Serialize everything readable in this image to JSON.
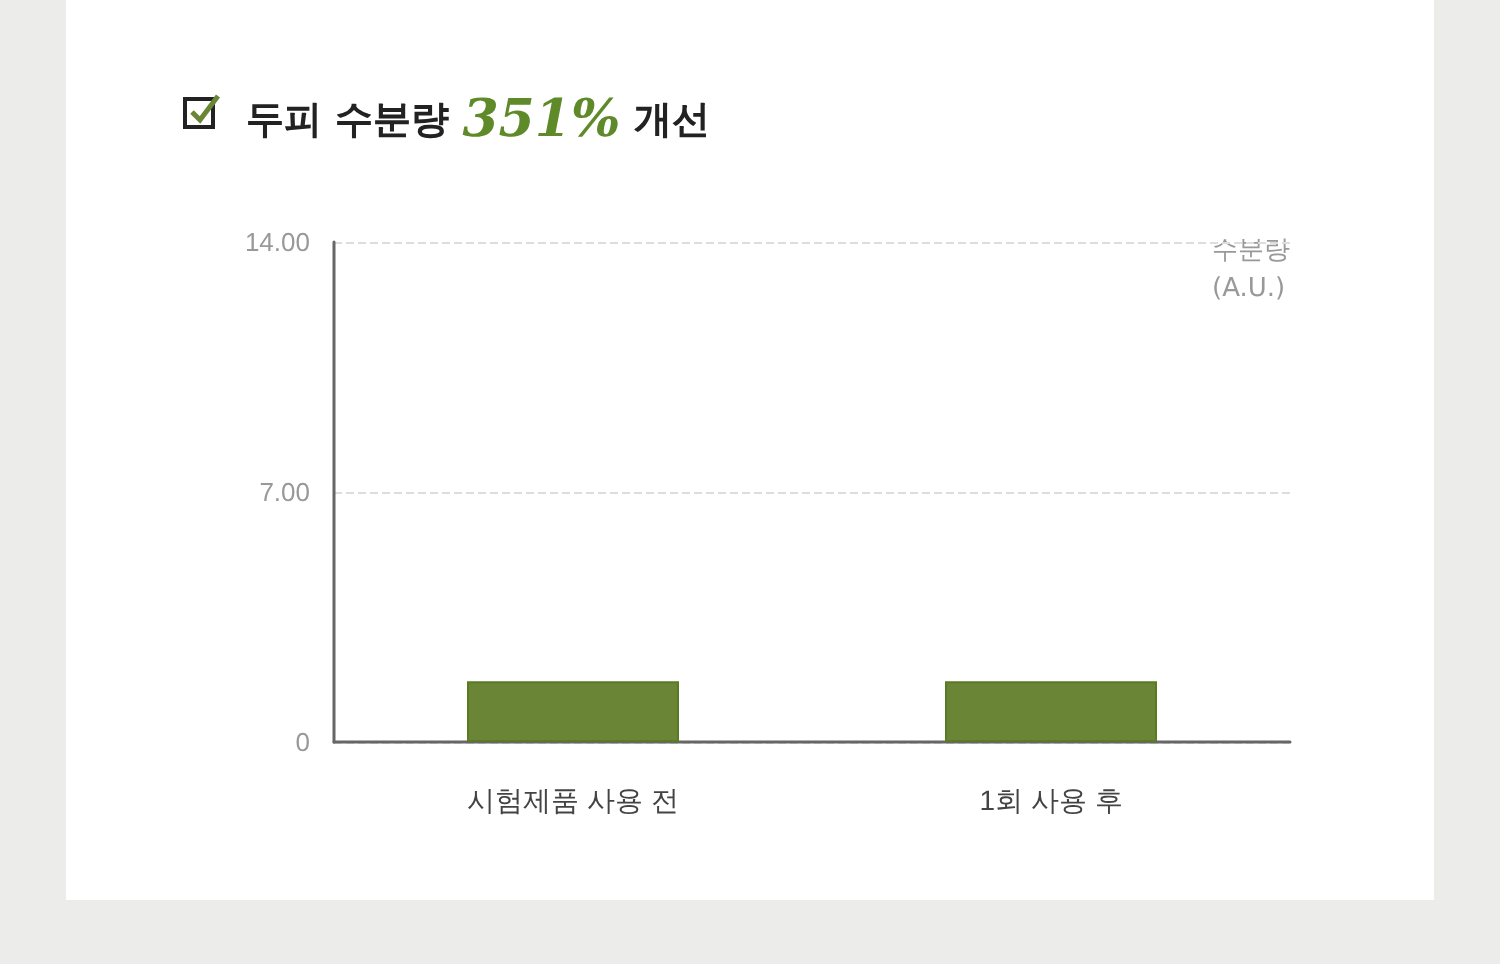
{
  "chart_data": {
    "type": "bar",
    "title": "두피 수분량 351% 개선",
    "categories": [
      "시험제품 사용 전",
      "1회 사용 후"
    ],
    "values": [
      1.7,
      1.7
    ],
    "color": "#6a8535",
    "ylabel": "수분량 (A.U.)",
    "ylim": [
      0,
      14
    ],
    "yticks": [
      0,
      {
        "value": 7,
        "label": "7.00"
      },
      {
        "value": 14,
        "label": "14.00"
      }
    ],
    "grid": "y"
  }
}
